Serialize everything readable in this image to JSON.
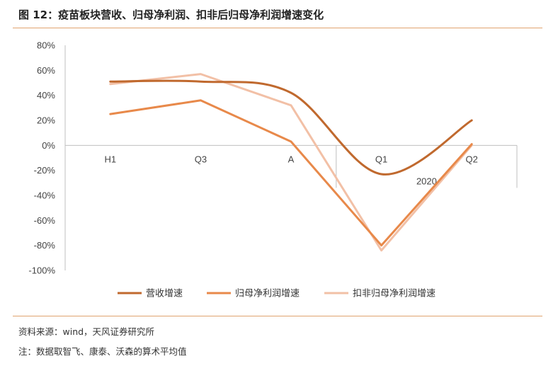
{
  "header": {
    "title": "图 12：疫苗板块营收、归母净利润、扣非后归母净利润增速变化"
  },
  "footer": {
    "source": "资料来源：wind，天风证券研究所",
    "note": "注：数据取智飞、康泰、沃森的算术平均值"
  },
  "chart_data": {
    "type": "line",
    "title": "",
    "xlabel": "",
    "ylabel": "",
    "categories": [
      "H1",
      "Q3",
      "A",
      "Q1",
      "Q2"
    ],
    "group_label": "2020",
    "ylim": [
      -1.0,
      0.8
    ],
    "yticks": [
      "80%",
      "60%",
      "40%",
      "20%",
      "0%",
      "-20%",
      "-40%",
      "-60%",
      "-80%",
      "-100%"
    ],
    "grid": false,
    "smooth": true,
    "legend_position": "bottom",
    "series": [
      {
        "name": "营收增速",
        "color": "#c0692e",
        "values": [
          0.51,
          0.51,
          0.42,
          -0.23,
          0.2
        ]
      },
      {
        "name": "归母净利润增速",
        "color": "#e8894a",
        "values": [
          0.25,
          0.36,
          0.03,
          -0.8,
          0.01
        ]
      },
      {
        "name": "扣非归母净利润增速",
        "color": "#f2c0a6",
        "values": [
          0.49,
          0.57,
          0.32,
          -0.84,
          0.0
        ]
      }
    ]
  }
}
